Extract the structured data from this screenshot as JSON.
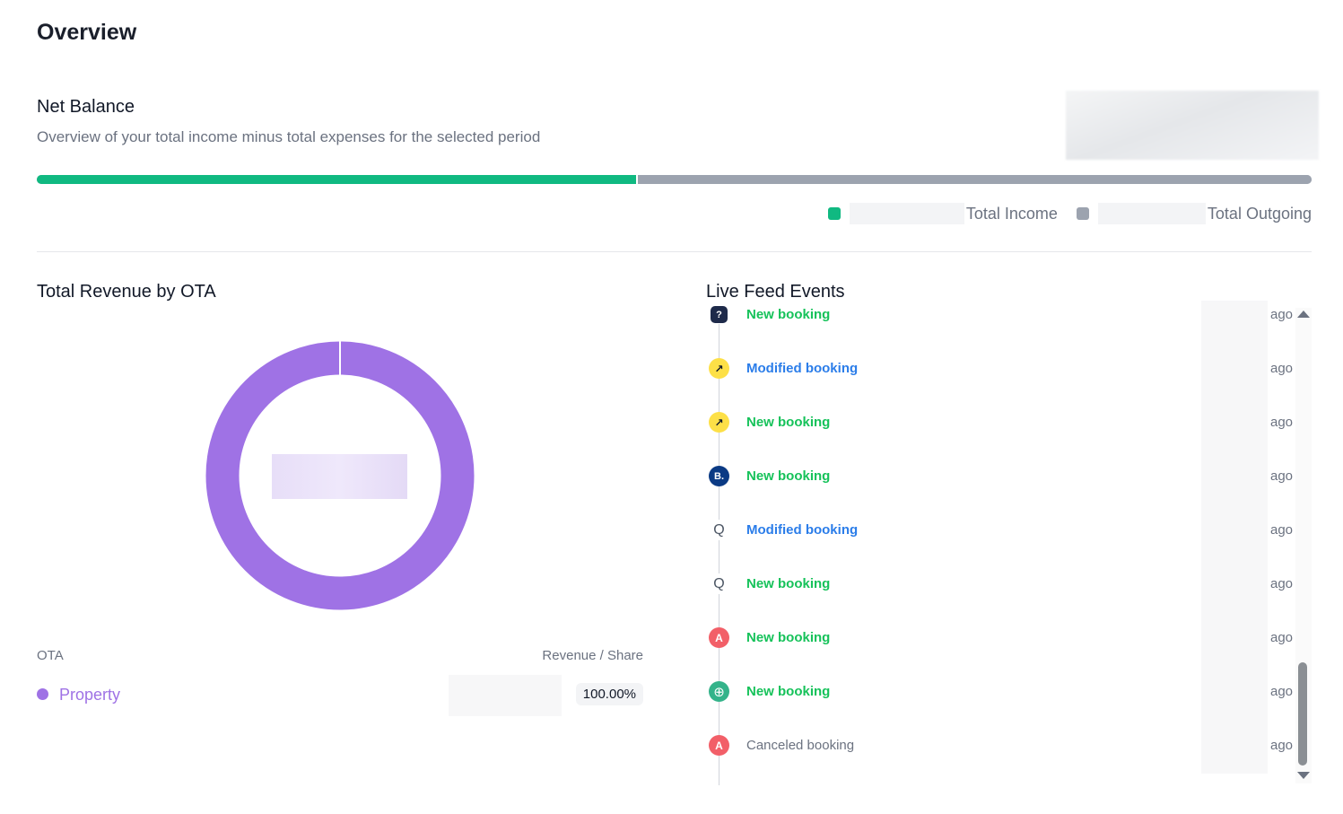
{
  "page": {
    "title": "Overview"
  },
  "net_balance": {
    "title": "Net Balance",
    "subtitle": "Overview of your total income minus total expenses for the selected period",
    "income_fraction": 0.47,
    "legend": {
      "income_label": "Total Income",
      "outgoing_label": "Total Outgoing"
    }
  },
  "colors": {
    "income": "#10b981",
    "outgoing": "#9ca3af",
    "ota_property": "#9f72e5",
    "new": "#16c25a",
    "modified": "#2b7de9",
    "canceled": "#6b7280"
  },
  "revenue": {
    "title": "Total Revenue by OTA",
    "columns": {
      "ota": "OTA",
      "revenue": "Revenue / Share"
    },
    "rows": [
      {
        "name": "Property",
        "share": "100.00%"
      }
    ],
    "chart_data": {
      "type": "pie",
      "categories": [
        "Property"
      ],
      "values": [
        100
      ]
    }
  },
  "feed": {
    "title": "Live Feed Events",
    "items": [
      {
        "icon": "unknown-ota-icon",
        "glyph": "?",
        "text": "New booking",
        "kind": "new",
        "ago": "ago"
      },
      {
        "icon": "expedia-icon",
        "glyph": "↗",
        "text": "Modified booking",
        "kind": "modified",
        "ago": "ago"
      },
      {
        "icon": "expedia-icon",
        "glyph": "↗",
        "text": "New booking",
        "kind": "new",
        "ago": "ago"
      },
      {
        "icon": "booking-com-icon",
        "glyph": "B.",
        "text": "New booking",
        "kind": "new",
        "ago": "ago"
      },
      {
        "icon": "direct-ota-icon",
        "glyph": "Q",
        "text": "Modified booking",
        "kind": "modified",
        "ago": "ago"
      },
      {
        "icon": "direct-ota-icon",
        "glyph": "Q",
        "text": "New booking",
        "kind": "new",
        "ago": "ago"
      },
      {
        "icon": "airbnb-icon",
        "glyph": "A",
        "text": "New booking",
        "kind": "new",
        "ago": "ago"
      },
      {
        "icon": "globe-icon",
        "glyph": "⊕",
        "text": "New booking",
        "kind": "new",
        "ago": "ago"
      },
      {
        "icon": "airbnb-icon",
        "glyph": "A",
        "text": "Canceled booking",
        "kind": "canceled",
        "ago": "ago"
      }
    ]
  }
}
